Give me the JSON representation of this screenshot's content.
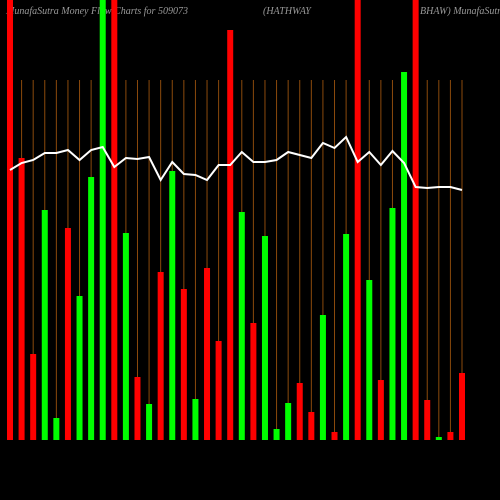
{
  "chart_data": {
    "type": "bar",
    "title": "MunafaSutra  Money Flow Charts for 509073",
    "subtitle_left": "(HATHWAY",
    "subtitle_right": "BHAW) MunafaSutra.com",
    "categories": [
      null,
      null,
      null,
      null,
      null,
      null,
      null,
      null,
      null,
      null,
      null,
      null,
      null,
      null,
      null,
      null,
      null,
      null,
      null,
      null,
      null,
      null,
      null,
      null,
      null,
      null,
      null,
      null,
      null,
      null,
      null,
      null,
      null,
      null,
      null,
      null,
      null,
      null,
      null,
      null
    ],
    "values": [
      460,
      282,
      86,
      230,
      22,
      212,
      144,
      263,
      460,
      460,
      207,
      63,
      36,
      168,
      269,
      151,
      41,
      172,
      99,
      410,
      228,
      117,
      204,
      11,
      37,
      57,
      28,
      125,
      8,
      206,
      460,
      160,
      60,
      232,
      368,
      460,
      40,
      3,
      8,
      67
    ],
    "bar_colors": [
      "#ff0000",
      "#ff0000",
      "#ff0000",
      "#00ff00",
      "#00ff00",
      "#ff0000",
      "#00ff00",
      "#00ff00",
      "#00ff00",
      "#ff0000",
      "#00ff00",
      "#ff0000",
      "#00ff00",
      "#ff0000",
      "#00ff00",
      "#ff0000",
      "#00ff00",
      "#ff0000",
      "#ff0000",
      "#ff0000",
      "#00ff00",
      "#ff0000",
      "#00ff00",
      "#00ff00",
      "#00ff00",
      "#ff0000",
      "#ff0000",
      "#00ff00",
      "#ff0000",
      "#00ff00",
      "#ff0000",
      "#00ff00",
      "#ff0000",
      "#00ff00",
      "#00ff00",
      "#ff0000",
      "#ff0000",
      "#00ff00",
      "#ff0000",
      "#ff0000"
    ],
    "line_values": [
      270,
      277,
      280,
      287,
      287,
      290,
      280,
      290,
      293,
      273,
      282,
      281,
      283,
      260,
      278,
      266,
      265,
      260,
      275,
      275,
      288,
      278,
      278,
      280,
      288,
      285,
      282,
      297,
      292,
      303,
      278,
      288,
      275,
      289,
      277,
      253,
      252,
      253,
      253,
      250
    ],
    "line_color": "#ffffff",
    "grid_color": "#8b4a0c",
    "ylim": [
      0,
      440
    ]
  }
}
